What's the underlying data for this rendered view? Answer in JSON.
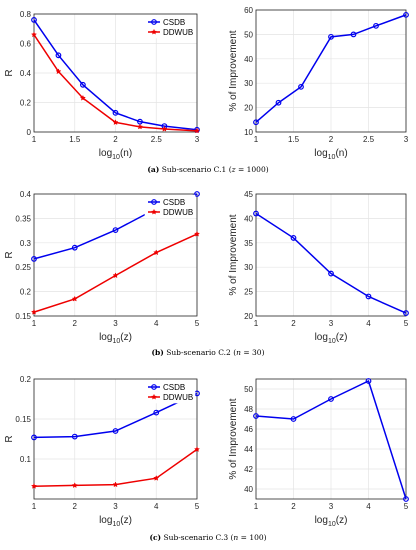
{
  "captions": [
    {
      "label": "(a)",
      "text": "Sub-scenario C.1 (",
      "var": "z",
      "rest": " = 1000)"
    },
    {
      "label": "(b)",
      "text": "Sub-scenario C.2 (",
      "var": "n",
      "rest": " = 30)"
    },
    {
      "label": "(c)",
      "text": "Sub-scenario C.3 (",
      "var": "n",
      "rest": " = 100)"
    }
  ],
  "colors": {
    "csdb": "#0000ee",
    "ddwub": "#ee0000",
    "improvement": "#0000ee"
  },
  "chart_data": [
    {
      "type": "line",
      "xlabel": "log10(n)",
      "xlabel_base": "log",
      "xlabel_sub": "10",
      "xlabel_arg": "(n)",
      "ylabel": "R",
      "xlim": [
        1,
        3
      ],
      "ylim": [
        0,
        0.8
      ],
      "xticks": [
        1,
        1.5,
        2,
        2.5,
        3
      ],
      "xtick_labels": [
        "1",
        "1.5",
        "2",
        "2.5",
        "3"
      ],
      "yticks": [
        0,
        0.2,
        0.4,
        0.6,
        0.8
      ],
      "ytick_labels": [
        "0",
        "0.2",
        "0.4",
        "0.6",
        "0.8"
      ],
      "legend": "top-right",
      "x": [
        1,
        1.3,
        1.6,
        2,
        2.3,
        2.6,
        3
      ],
      "series": [
        {
          "name": "CSDB",
          "color": "#0000ee",
          "marker": "circle",
          "values": [
            0.76,
            0.52,
            0.32,
            0.13,
            0.07,
            0.04,
            0.015
          ]
        },
        {
          "name": "DDWUB",
          "color": "#ee0000",
          "marker": "star",
          "values": [
            0.66,
            0.41,
            0.23,
            0.065,
            0.035,
            0.02,
            0.008
          ]
        }
      ]
    },
    {
      "type": "line",
      "xlabel": "log10(n)",
      "xlabel_base": "log",
      "xlabel_sub": "10",
      "xlabel_arg": "(n)",
      "ylabel": "% of Improvement",
      "xlim": [
        1,
        3
      ],
      "ylim": [
        10,
        60
      ],
      "xticks": [
        1,
        1.5,
        2,
        2.5,
        3
      ],
      "xtick_labels": [
        "1",
        "1.5",
        "2",
        "2.5",
        "3"
      ],
      "yticks": [
        10,
        20,
        30,
        40,
        50,
        60
      ],
      "ytick_labels": [
        "10",
        "20",
        "30",
        "40",
        "50",
        "60"
      ],
      "x": [
        1,
        1.3,
        1.6,
        2,
        2.3,
        2.6,
        3
      ],
      "series": [
        {
          "name": "",
          "color": "#0000ee",
          "marker": "circle",
          "values": [
            14,
            22,
            28.5,
            49,
            50,
            53.5,
            58
          ]
        }
      ]
    },
    {
      "type": "line",
      "xlabel": "log10(z)",
      "xlabel_base": "log",
      "xlabel_sub": "10",
      "xlabel_arg": "(z)",
      "ylabel": "R",
      "xlim": [
        1,
        5
      ],
      "ylim": [
        0.15,
        0.4
      ],
      "xticks": [
        1,
        2,
        3,
        4,
        5
      ],
      "xtick_labels": [
        "1",
        "2",
        "3",
        "4",
        "5"
      ],
      "yticks": [
        0.15,
        0.2,
        0.25,
        0.3,
        0.35,
        0.4
      ],
      "ytick_labels": [
        "0.15",
        "0.2",
        "0.25",
        "0.3",
        "0.35",
        "0.4"
      ],
      "legend": "top-right",
      "x": [
        1,
        2,
        3,
        4,
        5
      ],
      "series": [
        {
          "name": "CSDB",
          "color": "#0000ee",
          "marker": "circle",
          "values": [
            0.267,
            0.29,
            0.326,
            0.37,
            0.4
          ]
        },
        {
          "name": "DDWUB",
          "color": "#ee0000",
          "marker": "star",
          "values": [
            0.158,
            0.185,
            0.233,
            0.28,
            0.318
          ]
        }
      ]
    },
    {
      "type": "line",
      "xlabel": "log10(z)",
      "xlabel_base": "log",
      "xlabel_sub": "10",
      "xlabel_arg": "(z)",
      "ylabel": "% of Improvement",
      "xlim": [
        1,
        5
      ],
      "ylim": [
        20,
        45
      ],
      "xticks": [
        1,
        2,
        3,
        4,
        5
      ],
      "xtick_labels": [
        "1",
        "2",
        "3",
        "4",
        "5"
      ],
      "yticks": [
        20,
        25,
        30,
        35,
        40,
        45
      ],
      "ytick_labels": [
        "20",
        "25",
        "30",
        "35",
        "40",
        "45"
      ],
      "x": [
        1,
        2,
        3,
        4,
        5
      ],
      "series": [
        {
          "name": "",
          "color": "#0000ee",
          "marker": "circle",
          "values": [
            41,
            36,
            28.7,
            24,
            20.6
          ]
        }
      ]
    },
    {
      "type": "line",
      "xlabel": "log10(z)",
      "xlabel_base": "log",
      "xlabel_sub": "10",
      "xlabel_arg": "(z)",
      "ylabel": "R",
      "xlim": [
        1,
        5
      ],
      "ylim": [
        0.05,
        0.2
      ],
      "xticks": [
        1,
        2,
        3,
        4,
        5
      ],
      "xtick_labels": [
        "1",
        "2",
        "3",
        "4",
        "5"
      ],
      "yticks": [
        0.1,
        0.15,
        0.2
      ],
      "ytick_labels": [
        "0.1",
        "0.15",
        "0.2"
      ],
      "legend": "top-right",
      "x": [
        1,
        2,
        3,
        4,
        5
      ],
      "series": [
        {
          "name": "CSDB",
          "color": "#0000ee",
          "marker": "circle",
          "values": [
            0.127,
            0.128,
            0.135,
            0.158,
            0.182
          ]
        },
        {
          "name": "DDWUB",
          "color": "#ee0000",
          "marker": "star",
          "values": [
            0.066,
            0.067,
            0.068,
            0.076,
            0.112
          ]
        }
      ]
    },
    {
      "type": "line",
      "xlabel": "log10(z)",
      "xlabel_base": "log",
      "xlabel_sub": "10",
      "xlabel_arg": "(z)",
      "ylabel": "% of Improvement",
      "xlim": [
        1,
        5
      ],
      "ylim": [
        39,
        51
      ],
      "xticks": [
        1,
        2,
        3,
        4,
        5
      ],
      "xtick_labels": [
        "1",
        "2",
        "3",
        "4",
        "5"
      ],
      "yticks": [
        40,
        42,
        44,
        46,
        48,
        50
      ],
      "ytick_labels": [
        "40",
        "42",
        "44",
        "46",
        "48",
        "50"
      ],
      "x": [
        1,
        2,
        3,
        4,
        5
      ],
      "series": [
        {
          "name": "",
          "color": "#0000ee",
          "marker": "circle",
          "values": [
            47.3,
            47.0,
            49.0,
            50.8,
            39.0
          ]
        }
      ]
    }
  ]
}
